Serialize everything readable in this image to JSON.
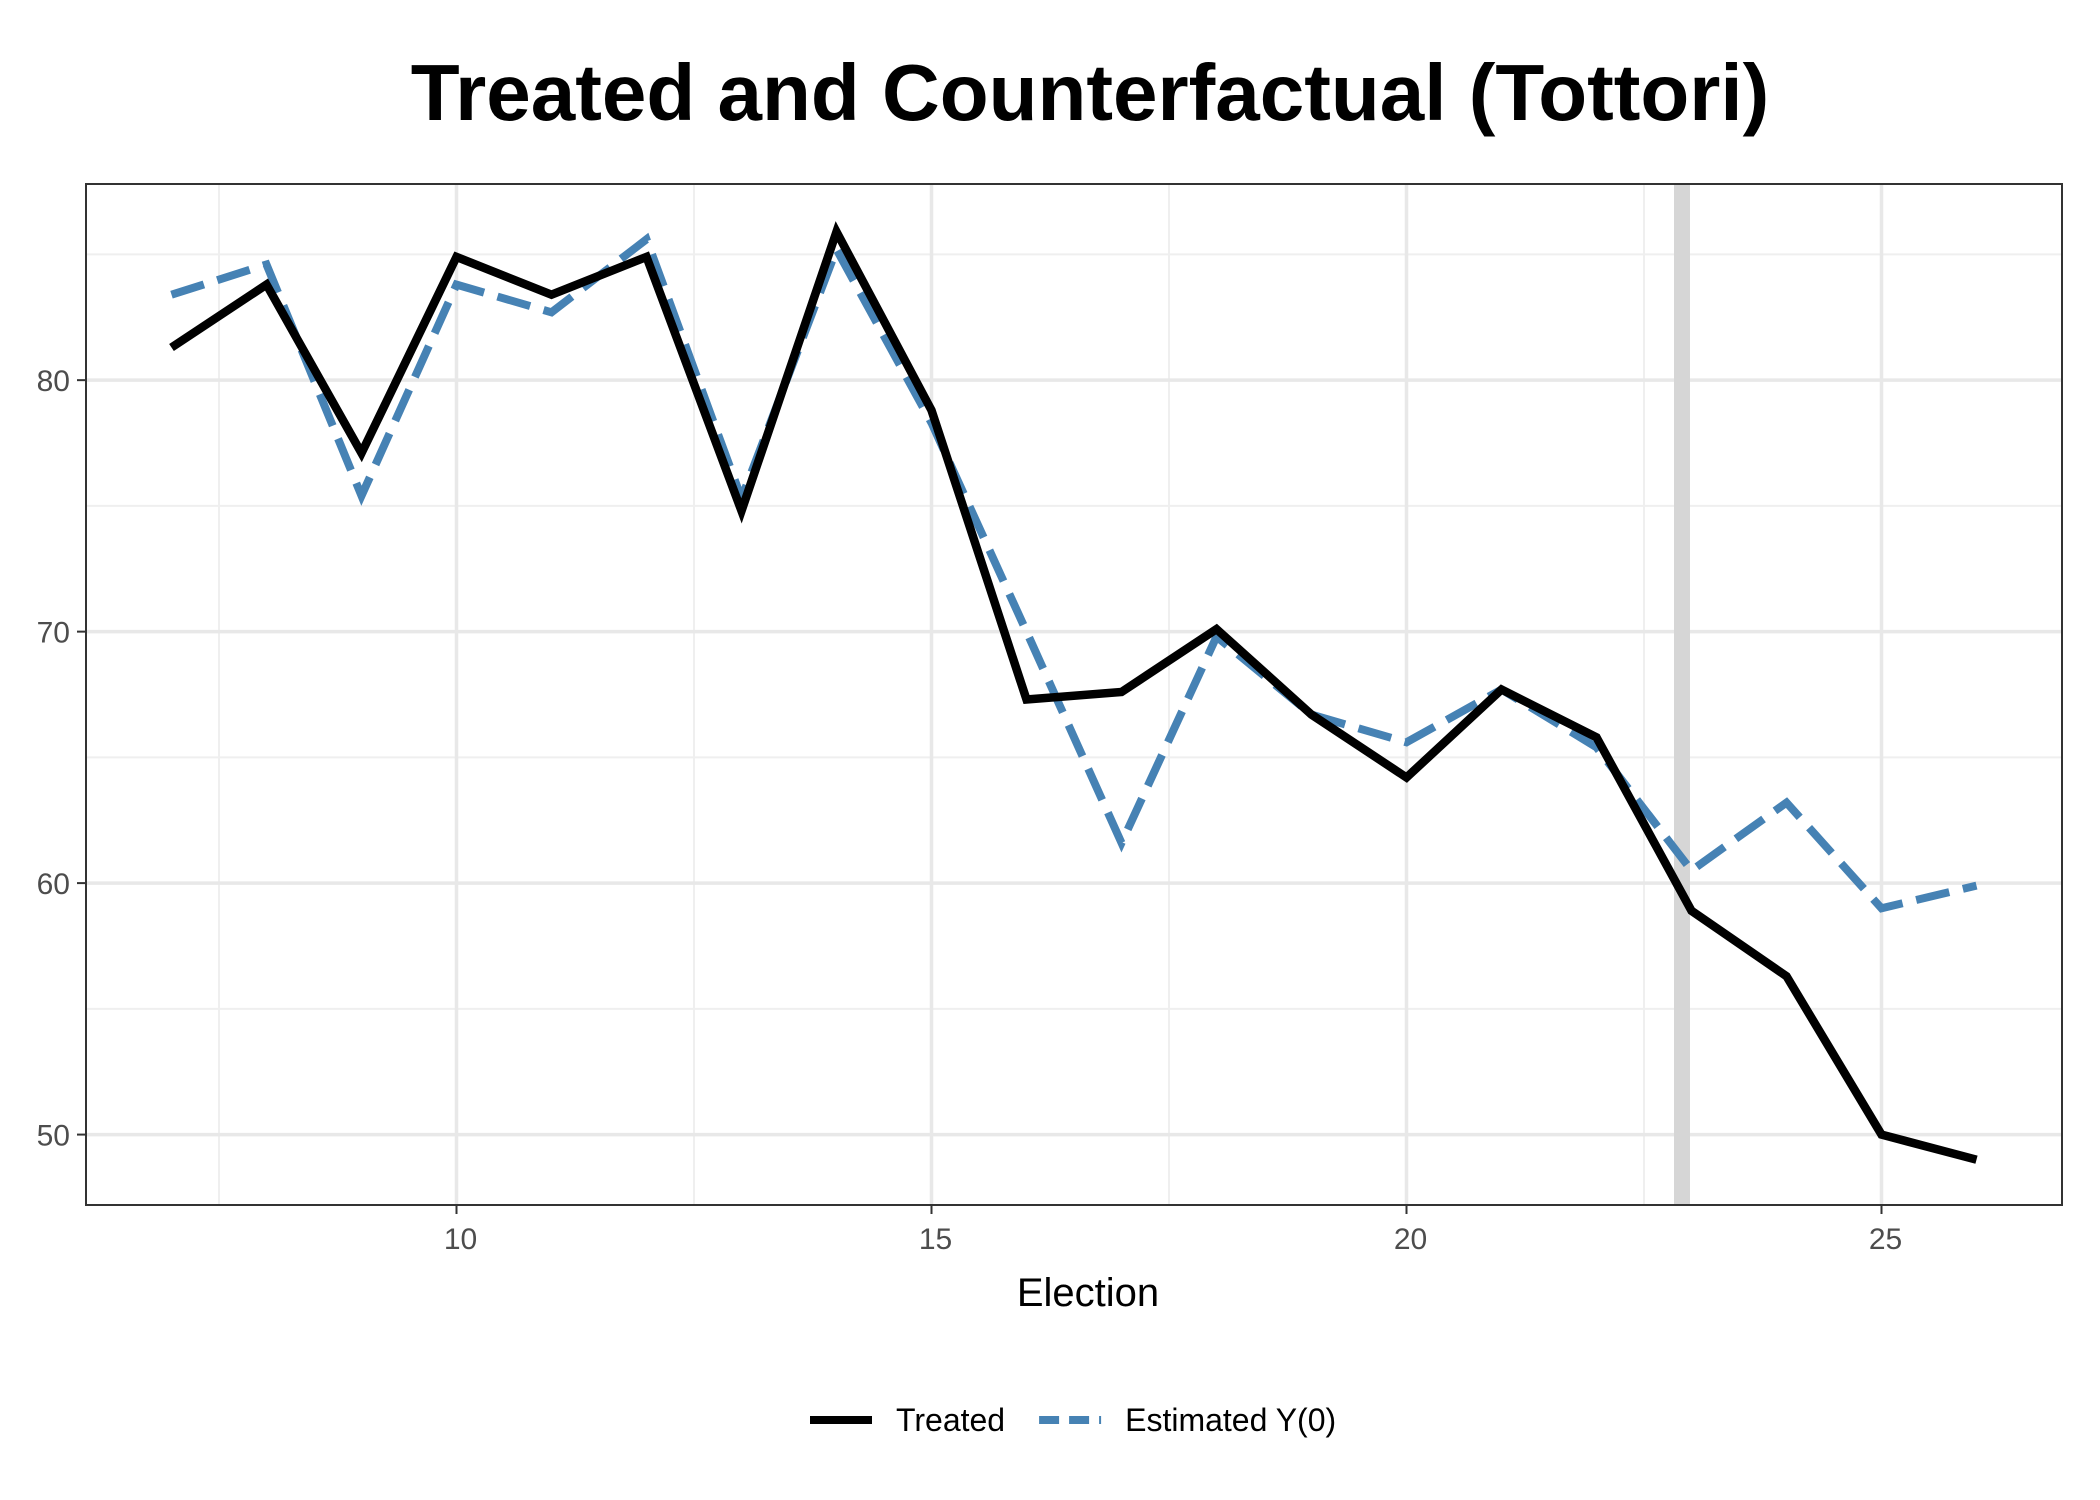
{
  "chart_data": {
    "type": "line",
    "title": "Treated and Counterfactual (Tottori)",
    "xlabel": "Election",
    "ylabel": "",
    "xlim": [
      6.1,
      26.9
    ],
    "ylim": [
      47.2,
      87.8
    ],
    "x_ticks": [
      10,
      15,
      20,
      25
    ],
    "x_tick_labels": [
      "10",
      "15",
      "20",
      "25"
    ],
    "x_minor": [
      7.5,
      12.5,
      17.5,
      22.5
    ],
    "y_ticks": [
      50,
      60,
      70,
      80
    ],
    "y_tick_labels": [
      "50",
      "60",
      "70",
      "80"
    ],
    "y_minor": [
      55,
      65,
      75,
      85
    ],
    "grid": true,
    "treatment_marker_x": 22.9,
    "legend_position": "bottom",
    "x": [
      7,
      8,
      9,
      10,
      11,
      12,
      13,
      14,
      15,
      16,
      17,
      18,
      19,
      20,
      21,
      22,
      23,
      24,
      25,
      26
    ],
    "series": [
      {
        "name": "Treated",
        "color": "#000000",
        "style": "solid",
        "values": [
          81.3,
          83.8,
          77.1,
          84.9,
          83.4,
          84.9,
          74.8,
          85.9,
          78.8,
          67.3,
          67.6,
          70.1,
          66.7,
          64.2,
          67.7,
          65.8,
          58.9,
          56.3,
          50.0,
          49.0
        ]
      },
      {
        "name": "Estimated Y(0)",
        "color": "#4682b4",
        "style": "dashed",
        "values": [
          83.4,
          84.6,
          75.4,
          83.8,
          82.7,
          85.6,
          75.3,
          85.2,
          78.3,
          70.0,
          61.6,
          69.8,
          66.7,
          65.6,
          67.7,
          65.4,
          60.5,
          63.2,
          59.0,
          59.9
        ]
      }
    ]
  }
}
